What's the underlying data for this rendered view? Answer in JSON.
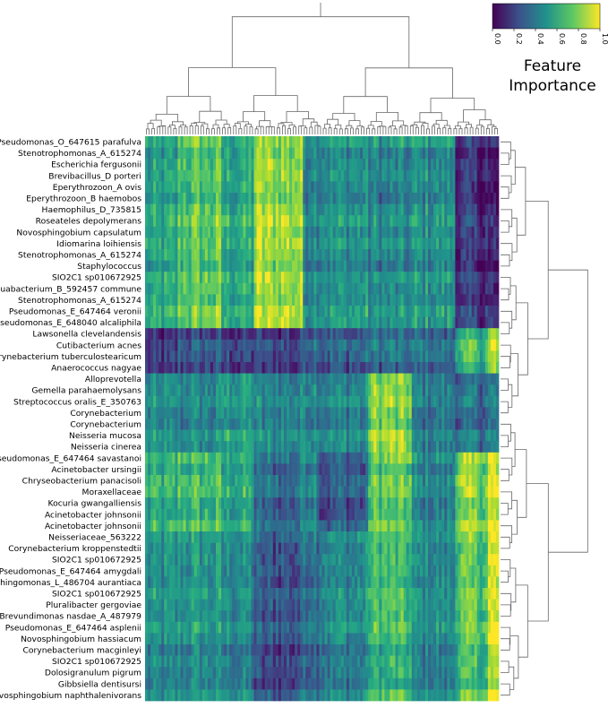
{
  "chart_data": {
    "type": "heatmap",
    "title": "",
    "xlabel": "",
    "ylabel": "",
    "rows": [
      "Pseudomonas_O_647615 parafulva",
      "Stenotrophomonas_A_615274",
      "Escherichia fergusonii",
      "Brevibacillus_D porteri",
      "Eperythrozoon_A ovis",
      "Eperythrozoon_B haemobos",
      "Haemophilus_D_735815",
      "Roseateles depolymerans",
      "Novosphingobium capsulatum",
      "Idiomarina loihiensis",
      "Stenotrophomonas_A_615274",
      "Staphylococcus",
      "SIO2C1 sp010672925",
      "Aquabacterium_B_592457 commune",
      "Stenotrophomonas_A_615274",
      "Pseudomonas_E_647464 veronii",
      "Pseudomonas_E_648040 alcaliphila",
      "Lawsonella clevelandensis",
      "Cutibacterium acnes",
      "Corynebacterium tuberculostearicum",
      "Anaerococcus nagyae",
      "Alloprevotella",
      "Gemella parahaemolysans",
      "Streptococcus oralis_E_350763",
      "Corynebacterium",
      "Corynebacterium",
      "Neisseria mucosa",
      "Neisseria cinerea",
      "Pseudomonas_E_647464 savastanoi",
      "Acinetobacter ursingii",
      "Chryseobacterium panacisoli",
      "Moraxellaceae",
      "Kocuria gwangalliensis",
      "Acinetobacter johnsonii",
      "Acinetobacter johnsonii",
      "Neisseriaceae_563222",
      "Corynebacterium kroppenstedtii",
      "SIO2C1 sp010672925",
      "Pseudomonas_E_647464 amygdali",
      "Sphingomonas_L_486704 aurantiaca",
      "SIO2C1 sp010672925",
      "Pluralibacter gergoviae",
      "Brevundimonas nasdae_A_487979",
      "Pseudomonas_E_647464 asplenii",
      "Novosphingobium hassiacum",
      "Corynebacterium macginleyi",
      "SIO2C1 sp010672925",
      "Dolosigranulum pigrum",
      "Gibbsiella dentisursi",
      "Novosphingobium naphthalenivorans"
    ],
    "n_columns": 130,
    "column_blocks": [
      {
        "start": 0,
        "end": 12
      },
      {
        "start": 12,
        "end": 28
      },
      {
        "start": 28,
        "end": 40
      },
      {
        "start": 40,
        "end": 58
      },
      {
        "start": 58,
        "end": 64
      },
      {
        "start": 64,
        "end": 82
      },
      {
        "start": 82,
        "end": 98
      },
      {
        "start": 98,
        "end": 114
      },
      {
        "start": 114,
        "end": 126
      },
      {
        "start": 126,
        "end": 130
      }
    ],
    "row_blocks": [
      {
        "start": 0,
        "end": 1,
        "levels": [
          0.55,
          0.75,
          0.6,
          0.8,
          0.55,
          0.55,
          0.5,
          0.55,
          0.15,
          0.1
        ]
      },
      {
        "start": 1,
        "end": 17,
        "levels": [
          0.55,
          0.72,
          0.6,
          0.85,
          0.5,
          0.5,
          0.45,
          0.5,
          0.15,
          0.08
        ]
      },
      {
        "start": 17,
        "end": 21,
        "levels": [
          0.15,
          0.25,
          0.2,
          0.2,
          0.35,
          0.3,
          0.35,
          0.35,
          0.65,
          0.85
        ]
      },
      {
        "start": 21,
        "end": 28,
        "levels": [
          0.45,
          0.45,
          0.55,
          0.45,
          0.5,
          0.45,
          0.8,
          0.4,
          0.35,
          0.4
        ]
      },
      {
        "start": 28,
        "end": 35,
        "levels": [
          0.6,
          0.68,
          0.6,
          0.35,
          0.5,
          0.3,
          0.75,
          0.45,
          0.8,
          0.95
        ]
      },
      {
        "start": 35,
        "end": 50,
        "levels": [
          0.45,
          0.5,
          0.45,
          0.25,
          0.4,
          0.45,
          0.65,
          0.45,
          0.7,
          0.9
        ]
      }
    ],
    "value_range": [
      0.0,
      1.0
    ],
    "colormap": "viridis",
    "colorbar": {
      "ticks": [
        "0.0",
        "0.2",
        "0.4",
        "0.6",
        "0.8",
        "1.0"
      ],
      "title_line1": "Feature",
      "title_line2": "Importance",
      "placement": "top-right"
    },
    "dendrograms": {
      "columns": "top",
      "rows": "right"
    }
  }
}
